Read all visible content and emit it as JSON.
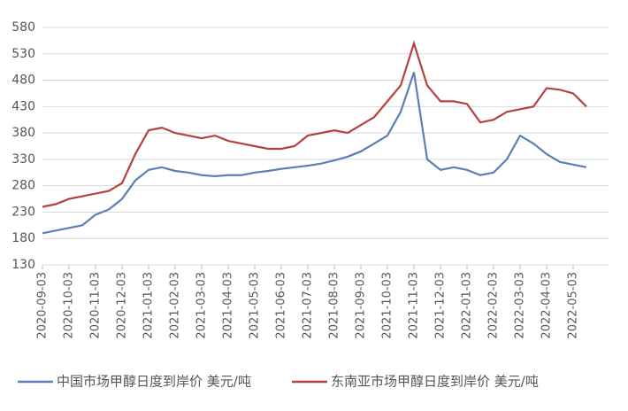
{
  "chart_data": {
    "type": "line",
    "categories": [
      "2020-09-03",
      null,
      "2020-10-03",
      null,
      "2020-11-03",
      null,
      "2020-12-03",
      null,
      "2021-01-03",
      null,
      "2021-02-03",
      null,
      "2021-03-03",
      null,
      "2021-04-03",
      null,
      "2021-05-03",
      null,
      "2021-06-03",
      null,
      "2021-07-03",
      null,
      "2021-08-03",
      null,
      "2021-09-03",
      null,
      "2021-10-03",
      null,
      "2021-11-03",
      null,
      "2021-12-03",
      null,
      "2022-01-03",
      null,
      "2022-02-03",
      null,
      "2022-03-03",
      null,
      "2022-04-03",
      null,
      "2022-05-03",
      null
    ],
    "series": [
      {
        "name": "中国市场甲醇日度到岸价 美元/吨",
        "color": "#5b7fb5",
        "values": [
          190,
          195,
          200,
          205,
          225,
          235,
          255,
          290,
          310,
          315,
          308,
          305,
          300,
          298,
          300,
          300,
          305,
          308,
          312,
          315,
          318,
          322,
          328,
          335,
          345,
          360,
          375,
          420,
          495,
          330,
          310,
          315,
          310,
          300,
          305,
          330,
          375,
          360,
          340,
          325,
          320,
          315
        ]
      },
      {
        "name": "东南亚市场甲醇日度到岸价 美元/吨",
        "color": "#b5423f",
        "values": [
          240,
          245,
          255,
          260,
          265,
          270,
          285,
          340,
          385,
          390,
          380,
          375,
          370,
          375,
          365,
          360,
          355,
          350,
          350,
          355,
          375,
          380,
          385,
          380,
          395,
          410,
          440,
          470,
          550,
          470,
          440,
          440,
          435,
          400,
          405,
          420,
          425,
          430,
          465,
          462,
          455,
          430
        ]
      }
    ],
    "ylim": [
      130,
      580
    ],
    "yticks": [
      130,
      180,
      230,
      280,
      330,
      380,
      430,
      480,
      530,
      580
    ],
    "grid": true
  }
}
